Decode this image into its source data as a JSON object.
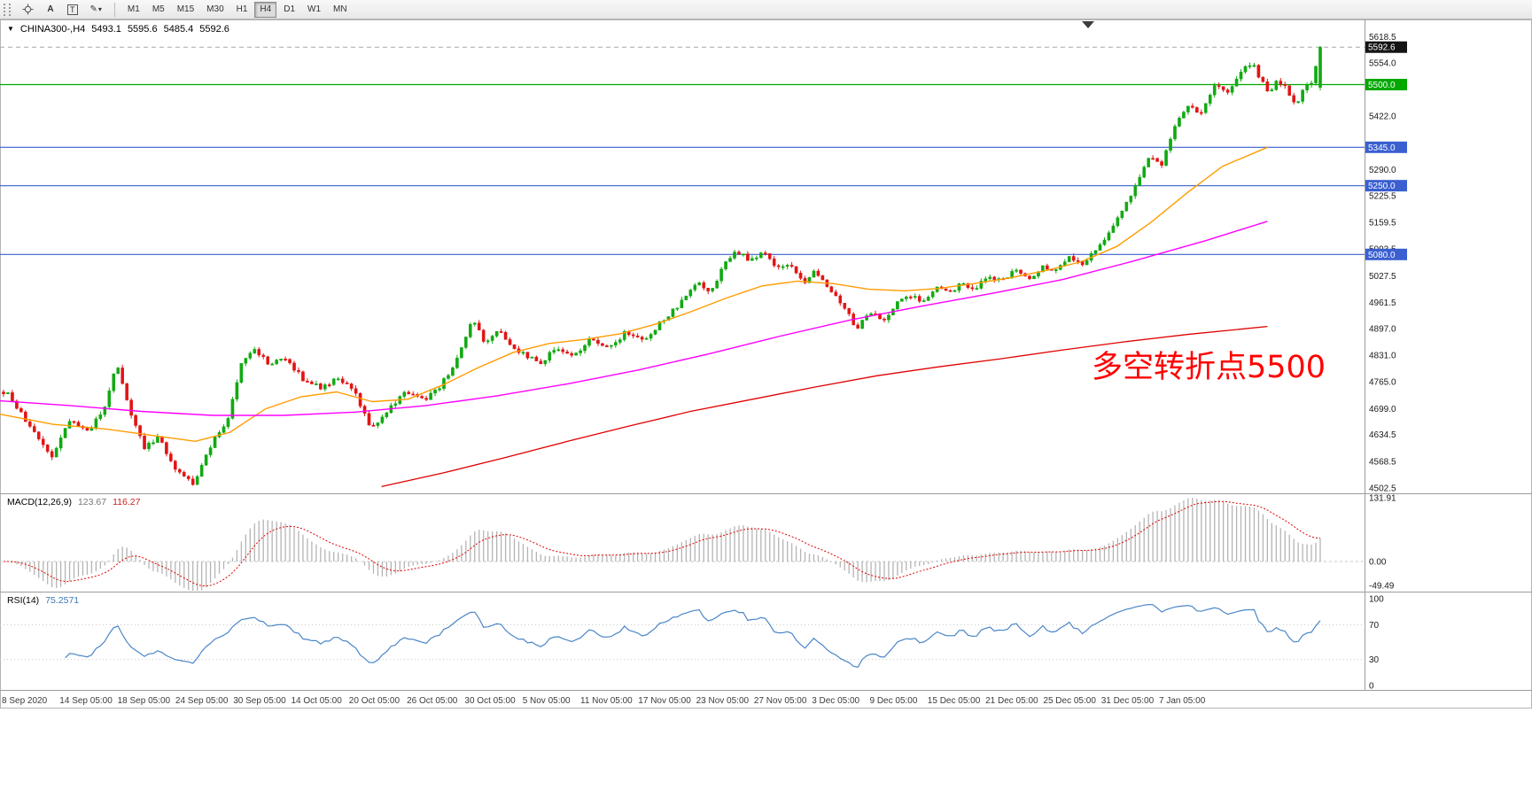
{
  "toolbar": {
    "tools": [
      {
        "name": "crosshair",
        "glyph": ""
      },
      {
        "name": "text-label",
        "glyph": "A"
      },
      {
        "name": "text-box",
        "glyph": "T"
      },
      {
        "name": "draw-tools",
        "glyph": "✎"
      }
    ],
    "timeframes": [
      "M1",
      "M5",
      "M15",
      "M30",
      "H1",
      "H4",
      "D1",
      "W1",
      "MN"
    ],
    "active_timeframe": "H4"
  },
  "chart": {
    "symbol_period": "CHINA300-,H4",
    "ohlc": {
      "open": "5493.1",
      "high": "5595.6",
      "low": "5485.4",
      "close": "5592.6"
    },
    "annotation": {
      "text": "多空转折点5500",
      "color": "#ff0000"
    }
  },
  "macd": {
    "label": "MACD(12,26,9)",
    "main": "123.67",
    "signal": "116.27"
  },
  "rsi": {
    "label": "RSI(14)",
    "value": "75.2571"
  },
  "time_axis": [
    "8 Sep 2020",
    "14 Sep 05:00",
    "18 Sep 05:00",
    "24 Sep 05:00",
    "30 Sep 05:00",
    "14 Oct 05:00",
    "20 Oct 05:00",
    "26 Oct 05:00",
    "30 Oct 05:00",
    "5 Nov 05:00",
    "11 Nov 05:00",
    "17 Nov 05:00",
    "23 Nov 05:00",
    "27 Nov 05:00",
    "3 Dec 05:00",
    "9 Dec 05:00",
    "15 Dec 05:00",
    "21 Dec 05:00",
    "25 Dec 05:00",
    "31 Dec 05:00",
    "7 Jan 05:00"
  ],
  "chart_data": {
    "type": "candlestick",
    "title": "CHINA300- H4",
    "x_range": [
      "8 Sep 2020",
      "7 Jan 05:00"
    ],
    "ylim": [
      4491,
      5661
    ],
    "candle_count": 300,
    "last_ohlc": {
      "open": 5493.1,
      "high": 5595.6,
      "low": 5485.4,
      "close": 5592.6
    },
    "colors": {
      "up": "#12a912",
      "down": "#e21414"
    },
    "price_path": [
      [
        0.0,
        4740
      ],
      [
        0.005,
        4730
      ],
      [
        0.02,
        4650
      ],
      [
        0.037,
        4580
      ],
      [
        0.05,
        4670
      ],
      [
        0.064,
        4640
      ],
      [
        0.077,
        4700
      ],
      [
        0.086,
        4815
      ],
      [
        0.094,
        4710
      ],
      [
        0.107,
        4600
      ],
      [
        0.117,
        4630
      ],
      [
        0.131,
        4550
      ],
      [
        0.144,
        4510
      ],
      [
        0.158,
        4610
      ],
      [
        0.171,
        4680
      ],
      [
        0.181,
        4820
      ],
      [
        0.191,
        4845
      ],
      [
        0.201,
        4810
      ],
      [
        0.215,
        4820
      ],
      [
        0.228,
        4770
      ],
      [
        0.242,
        4750
      ],
      [
        0.255,
        4775
      ],
      [
        0.268,
        4730
      ],
      [
        0.279,
        4650
      ],
      [
        0.292,
        4695
      ],
      [
        0.305,
        4740
      ],
      [
        0.319,
        4720
      ],
      [
        0.332,
        4755
      ],
      [
        0.346,
        4830
      ],
      [
        0.356,
        4920
      ],
      [
        0.366,
        4860
      ],
      [
        0.376,
        4890
      ],
      [
        0.386,
        4855
      ],
      [
        0.396,
        4830
      ],
      [
        0.409,
        4810
      ],
      [
        0.419,
        4850
      ],
      [
        0.433,
        4830
      ],
      [
        0.446,
        4870
      ],
      [
        0.46,
        4845
      ],
      [
        0.473,
        4890
      ],
      [
        0.487,
        4865
      ],
      [
        0.5,
        4915
      ],
      [
        0.513,
        4955
      ],
      [
        0.527,
        5010
      ],
      [
        0.537,
        4985
      ],
      [
        0.547,
        5055
      ],
      [
        0.557,
        5090
      ],
      [
        0.567,
        5065
      ],
      [
        0.577,
        5085
      ],
      [
        0.587,
        5045
      ],
      [
        0.597,
        5060
      ],
      [
        0.607,
        5010
      ],
      [
        0.617,
        5040
      ],
      [
        0.628,
        4995
      ],
      [
        0.638,
        4955
      ],
      [
        0.648,
        4895
      ],
      [
        0.658,
        4940
      ],
      [
        0.668,
        4915
      ],
      [
        0.678,
        4960
      ],
      [
        0.688,
        4980
      ],
      [
        0.698,
        4965
      ],
      [
        0.708,
        5000
      ],
      [
        0.718,
        4985
      ],
      [
        0.728,
        5010
      ],
      [
        0.738,
        4995
      ],
      [
        0.748,
        5030
      ],
      [
        0.758,
        5012
      ],
      [
        0.768,
        5040
      ],
      [
        0.779,
        5020
      ],
      [
        0.789,
        5052
      ],
      [
        0.799,
        5040
      ],
      [
        0.809,
        5078
      ],
      [
        0.819,
        5058
      ],
      [
        0.829,
        5092
      ],
      [
        0.839,
        5130
      ],
      [
        0.849,
        5180
      ],
      [
        0.859,
        5248
      ],
      [
        0.869,
        5320
      ],
      [
        0.879,
        5300
      ],
      [
        0.889,
        5390
      ],
      [
        0.899,
        5448
      ],
      [
        0.909,
        5428
      ],
      [
        0.919,
        5498
      ],
      [
        0.93,
        5478
      ],
      [
        0.94,
        5528
      ],
      [
        0.948,
        5558
      ],
      [
        0.954,
        5518
      ],
      [
        0.961,
        5482
      ],
      [
        0.968,
        5512
      ],
      [
        0.975,
        5488
      ],
      [
        0.981,
        5448
      ],
      [
        0.988,
        5495
      ],
      [
        0.994,
        5500
      ],
      [
        1.0,
        5592.6
      ]
    ],
    "moving_averages": [
      {
        "name": "ma-fast-orange",
        "color": "#ff9c00",
        "width": 1.4,
        "points": [
          [
            0,
            4685
          ],
          [
            0.04,
            4660
          ],
          [
            0.081,
            4648
          ],
          [
            0.121,
            4630
          ],
          [
            0.148,
            4618
          ],
          [
            0.174,
            4640
          ],
          [
            0.201,
            4698
          ],
          [
            0.228,
            4728
          ],
          [
            0.255,
            4740
          ],
          [
            0.282,
            4716
          ],
          [
            0.309,
            4722
          ],
          [
            0.336,
            4758
          ],
          [
            0.362,
            4800
          ],
          [
            0.389,
            4838
          ],
          [
            0.416,
            4860
          ],
          [
            0.443,
            4870
          ],
          [
            0.47,
            4884
          ],
          [
            0.497,
            4908
          ],
          [
            0.523,
            4938
          ],
          [
            0.55,
            4972
          ],
          [
            0.577,
            5002
          ],
          [
            0.604,
            5014
          ],
          [
            0.631,
            5008
          ],
          [
            0.658,
            4994
          ],
          [
            0.685,
            4990
          ],
          [
            0.711,
            4996
          ],
          [
            0.738,
            5008
          ],
          [
            0.765,
            5022
          ],
          [
            0.792,
            5040
          ],
          [
            0.819,
            5062
          ],
          [
            0.846,
            5100
          ],
          [
            0.872,
            5160
          ],
          [
            0.899,
            5232
          ],
          [
            0.926,
            5298
          ],
          [
            0.96,
            5345
          ]
        ]
      },
      {
        "name": "ma-mid-magenta",
        "color": "#ff00ff",
        "width": 1.4,
        "points": [
          [
            0,
            4718
          ],
          [
            0.054,
            4706
          ],
          [
            0.107,
            4692
          ],
          [
            0.161,
            4682
          ],
          [
            0.215,
            4682
          ],
          [
            0.268,
            4690
          ],
          [
            0.322,
            4706
          ],
          [
            0.376,
            4730
          ],
          [
            0.43,
            4760
          ],
          [
            0.483,
            4794
          ],
          [
            0.537,
            4834
          ],
          [
            0.591,
            4878
          ],
          [
            0.644,
            4918
          ],
          [
            0.698,
            4952
          ],
          [
            0.752,
            4984
          ],
          [
            0.805,
            5018
          ],
          [
            0.859,
            5064
          ],
          [
            0.913,
            5114
          ],
          [
            0.96,
            5162
          ]
        ]
      },
      {
        "name": "ma-slow-red",
        "color": "#e00000",
        "width": 1.3,
        "points": [
          [
            0.289,
            4506
          ],
          [
            0.336,
            4540
          ],
          [
            0.383,
            4578
          ],
          [
            0.43,
            4618
          ],
          [
            0.477,
            4656
          ],
          [
            0.523,
            4692
          ],
          [
            0.57,
            4722
          ],
          [
            0.617,
            4752
          ],
          [
            0.664,
            4780
          ],
          [
            0.711,
            4802
          ],
          [
            0.758,
            4822
          ],
          [
            0.805,
            4844
          ],
          [
            0.852,
            4864
          ],
          [
            0.899,
            4882
          ],
          [
            0.96,
            4902
          ]
        ]
      }
    ],
    "levels": [
      {
        "name": "current-price",
        "value": 5592.6,
        "label": "5592.6",
        "style": "dashed",
        "line_color": "#a8a8a8",
        "badge_color": "#141414"
      },
      {
        "name": "hline-5500",
        "value": 5500.0,
        "label": "5500.0",
        "style": "solid",
        "line_color": "#00a800",
        "badge_color": "#00a800"
      },
      {
        "name": "hline-5345",
        "value": 5345.0,
        "label": "5345.0",
        "style": "solid",
        "line_color": "#3a5fd0",
        "badge_color": "#3a5fd0"
      },
      {
        "name": "hline-5250",
        "value": 5250.0,
        "label": "5250.0",
        "style": "solid",
        "line_color": "#3a5fd0",
        "badge_color": "#3a5fd0"
      },
      {
        "name": "hline-5080",
        "value": 5080.0,
        "label": "5080.0",
        "style": "solid",
        "line_color": "#3a5fd0",
        "badge_color": "#3a5fd0"
      }
    ],
    "axis_labels": [
      {
        "v": 5618.5,
        "label": "5618.5"
      },
      {
        "v": 5554.0,
        "label": "5554.0"
      },
      {
        "v": 5422.0,
        "label": "5422.0"
      },
      {
        "v": 5290.0,
        "label": "5290.0"
      },
      {
        "v": 5225.5,
        "label": "5225.5"
      },
      {
        "v": 5159.5,
        "label": "5159.5"
      },
      {
        "v": 5093.5,
        "label": "5093.5"
      },
      {
        "v": 5027.5,
        "label": "5027.5"
      },
      {
        "v": 4961.5,
        "label": "4961.5"
      },
      {
        "v": 4897.0,
        "label": "4897.0"
      },
      {
        "v": 4831.0,
        "label": "4831.0"
      },
      {
        "v": 4765.0,
        "label": "4765.0"
      },
      {
        "v": 4699.0,
        "label": "4699.0"
      },
      {
        "v": 4634.5,
        "label": "4634.5"
      },
      {
        "v": 4568.5,
        "label": "4568.5"
      },
      {
        "v": 4502.5,
        "label": "4502.5"
      }
    ],
    "macd": {
      "params": [
        12,
        26,
        9
      ],
      "main": 123.67,
      "signal": 116.27,
      "histogram_color": "#b4b4b4",
      "signal_color": "#e00000",
      "axis": [
        {
          "v": 131.91,
          "label": "131.91"
        },
        {
          "v": 0,
          "label": "0.00"
        },
        {
          "v": -49.49,
          "label": "-49.49"
        }
      ]
    },
    "rsi": {
      "period": 14,
      "value": 75.2571,
      "color": "#4a86c8",
      "levels": [
        70,
        30
      ],
      "axis": [
        {
          "v": 100,
          "label": "100"
        },
        {
          "v": 70,
          "label": "70"
        },
        {
          "v": 30,
          "label": "30"
        },
        {
          "v": 0,
          "label": "0"
        }
      ]
    }
  }
}
